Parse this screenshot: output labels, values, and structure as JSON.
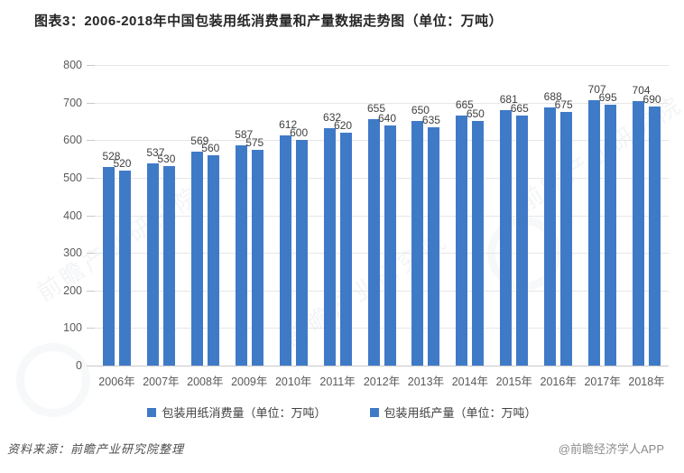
{
  "title": "图表3：2006-2018年中国包装用纸消费量和产量数据走势图（单位：万吨）",
  "chart_data": {
    "type": "bar",
    "categories": [
      "2006年",
      "2007年",
      "2008年",
      "2009年",
      "2010年",
      "2011年",
      "2012年",
      "2013年",
      "2014年",
      "2015年",
      "2016年",
      "2017年",
      "2018年"
    ],
    "series": [
      {
        "name": "包装用纸消费量（单位：万吨）",
        "values": [
          528,
          537,
          569,
          587,
          612,
          632,
          655,
          650,
          665,
          681,
          688,
          707,
          704
        ]
      },
      {
        "name": "包装用纸产量（单位：万吨）",
        "values": [
          520,
          530,
          560,
          575,
          600,
          620,
          640,
          635,
          650,
          665,
          675,
          695,
          690
        ]
      }
    ],
    "ylim": [
      0,
      800
    ],
    "yticks": [
      0,
      100,
      200,
      300,
      400,
      500,
      600,
      700,
      800
    ],
    "grid": true,
    "legend_position": "bottom",
    "bar_color": "#3f7ac7",
    "xlabel": "",
    "ylabel": ""
  },
  "footer": {
    "source": "资料来源：前瞻产业研究院整理",
    "credit": "@前瞻经济学人APP"
  },
  "watermark": "前瞻产业研究院",
  "colors": {
    "bar": "#3f7ac7",
    "grid": "#e6e6e6",
    "axis": "#c9c9c9",
    "tick_text": "#595959",
    "label_text": "#404040"
  }
}
